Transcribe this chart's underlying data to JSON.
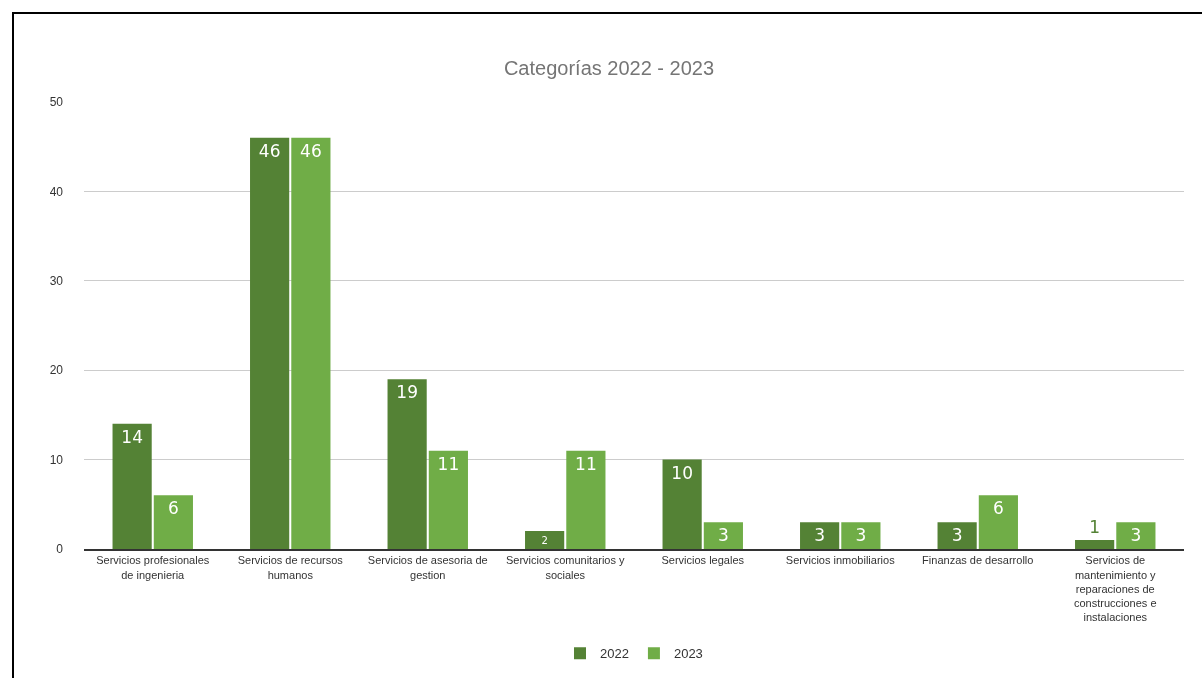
{
  "chart_data": {
    "type": "bar",
    "title": "Categorías 2022 - 2023",
    "categories": [
      "Servicios profesionales de ingenieria",
      "Servicios de recursos humanos",
      "Servicios de asesoria de gestion",
      "Servicios comunitarios y sociales",
      "Servicios legales",
      "Servicios inmobiliarios",
      "Finanzas de desarrollo",
      "Servicios de mantenimiento y reparaciones de construcciones e instalaciones"
    ],
    "series": [
      {
        "name": "2022",
        "color": "#548235",
        "values": [
          14,
          46,
          19,
          2,
          10,
          3,
          3,
          1
        ]
      },
      {
        "name": "2023",
        "color": "#70ad47",
        "values": [
          6,
          46,
          11,
          11,
          3,
          3,
          6,
          3
        ]
      }
    ],
    "ylim": [
      0,
      50
    ],
    "yticks": [
      0,
      10,
      20,
      30,
      40,
      50
    ],
    "grid": "y",
    "legend": "bottom",
    "data_labels": true
  }
}
